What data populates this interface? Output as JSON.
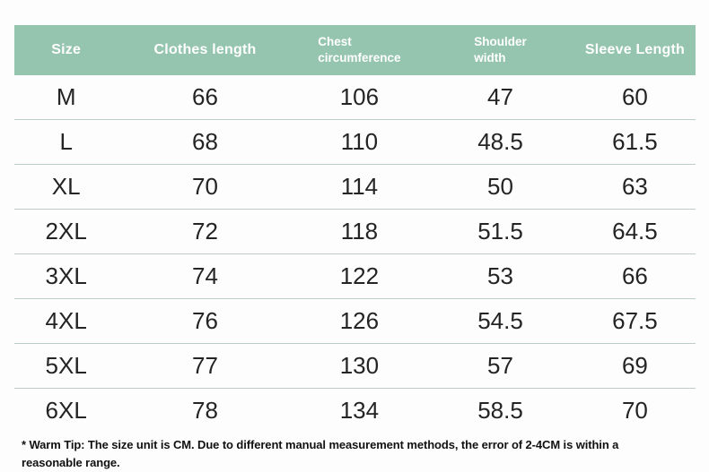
{
  "colors": {
    "header_background": "#95c5ae",
    "header_text": "#ffffff",
    "body_text": "#242424",
    "row_divider": "#bccdc7",
    "page_background": "#fdfdfd"
  },
  "table": {
    "headers": [
      "Size",
      "Clothes length",
      "Chest\ncircumference",
      "Shoulder\nwidth",
      "Sleeve Length"
    ],
    "rows": [
      [
        "M",
        "66",
        "106",
        "47",
        "60"
      ],
      [
        "L",
        "68",
        "110",
        "48.5",
        "61.5"
      ],
      [
        "XL",
        "70",
        "114",
        "50",
        "63"
      ],
      [
        "2XL",
        "72",
        "118",
        "51.5",
        "64.5"
      ],
      [
        "3XL",
        "74",
        "122",
        "53",
        "66"
      ],
      [
        "4XL",
        "76",
        "126",
        "54.5",
        "67.5"
      ],
      [
        "5XL",
        "77",
        "130",
        "57",
        "69"
      ],
      [
        "6XL",
        "78",
        "134",
        "58.5",
        "70"
      ]
    ]
  },
  "footnote": "* Warm Tip: The size unit is CM. Due to different manual measurement methods, the error of 2-4CM is within a reasonable range."
}
